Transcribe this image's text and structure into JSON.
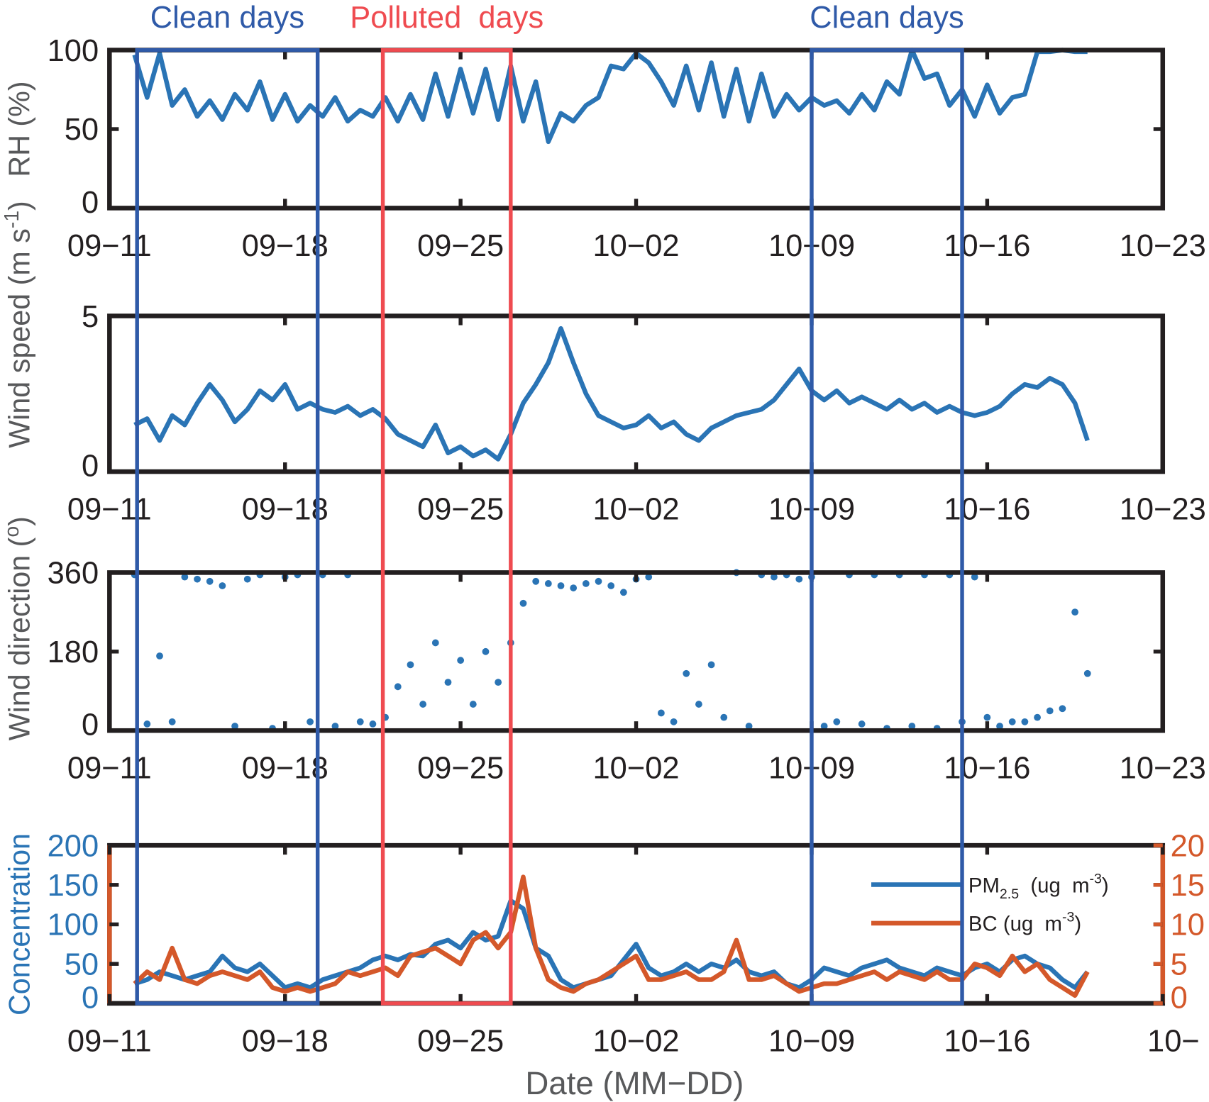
{
  "colors": {
    "blue_series": "#2a74b5",
    "orange_series": "#d4582a",
    "clean_box": "#2f5aa8",
    "polluted_box": "#ef4b50",
    "axis": "#231f20"
  },
  "annotations": [
    {
      "label": "Clean days",
      "color": "#2f5aa8",
      "from_day": 1.1,
      "to_day": 8.3
    },
    {
      "label": "Polluted  days",
      "color": "#ef4b50",
      "from_day": 10.9,
      "to_day": 16.0
    },
    {
      "label": "Clean days",
      "color": "#2f5aa8",
      "from_day": 28.0,
      "to_day": 34.0
    }
  ],
  "xaxis": {
    "label": "Date (MM−DD)",
    "origin_date": "09-11",
    "xlim": [
      0,
      42
    ],
    "tick_days": [
      0,
      7,
      14,
      21,
      28,
      35,
      42
    ],
    "tick_labels": [
      "09−11",
      "09−18",
      "09−25",
      "10−02",
      "10−09",
      "10−16",
      "10−23"
    ],
    "last_label_bottom": "10−"
  },
  "series_time": {
    "start_day": 1.0,
    "step_days": 0.5
  },
  "chart_data": [
    {
      "type": "line",
      "ylabel": "RH (%)",
      "ylim": [
        0,
        100
      ],
      "yticks": [
        0,
        50,
        100
      ],
      "ytick_labels": [
        "0",
        "50",
        "100"
      ],
      "series": [
        {
          "name": "RH",
          "values": [
            97,
            70,
            98,
            65,
            75,
            58,
            68,
            56,
            72,
            62,
            80,
            56,
            72,
            55,
            65,
            58,
            70,
            55,
            62,
            58,
            70,
            55,
            72,
            56,
            85,
            58,
            88,
            60,
            88,
            56,
            90,
            55,
            80,
            42,
            60,
            55,
            65,
            70,
            90,
            88,
            98,
            92,
            80,
            65,
            90,
            62,
            92,
            58,
            88,
            55,
            85,
            58,
            72,
            62,
            70,
            65,
            68,
            60,
            72,
            62,
            80,
            72,
            100,
            82,
            85,
            65,
            75,
            58,
            78,
            60,
            70,
            72,
            99,
            99,
            100,
            99,
            99
          ]
        }
      ]
    },
    {
      "type": "line",
      "ylabel": "Wind speed  (m s",
      "ylabel_sup": "-1",
      "ylabel_end": ")",
      "ylim": [
        0,
        5
      ],
      "yticks": [
        0,
        5
      ],
      "ytick_labels": [
        "0",
        "5"
      ],
      "series": [
        {
          "name": "Wind speed",
          "values": [
            1.5,
            1.7,
            1.0,
            1.8,
            1.5,
            2.2,
            2.8,
            2.3,
            1.6,
            2.0,
            2.6,
            2.3,
            2.8,
            2.0,
            2.2,
            2.0,
            1.9,
            2.1,
            1.8,
            2.0,
            1.7,
            1.2,
            1.0,
            0.8,
            1.5,
            0.6,
            0.8,
            0.5,
            0.7,
            0.4,
            1.2,
            2.2,
            2.8,
            3.5,
            4.6,
            3.5,
            2.5,
            1.8,
            1.6,
            1.4,
            1.5,
            1.8,
            1.4,
            1.6,
            1.2,
            1.0,
            1.4,
            1.6,
            1.8,
            1.9,
            2.0,
            2.3,
            2.8,
            3.3,
            2.6,
            2.3,
            2.6,
            2.2,
            2.4,
            2.2,
            2.0,
            2.3,
            2.0,
            2.2,
            1.9,
            2.1,
            1.9,
            1.8,
            1.9,
            2.1,
            2.5,
            2.8,
            2.7,
            3.0,
            2.8,
            2.2,
            1.0
          ]
        }
      ]
    },
    {
      "type": "scatter",
      "ylabel": "Wind  direction  (",
      "ylabel_sup": "o",
      "ylabel_end": ")",
      "ylim": [
        0,
        360
      ],
      "yticks": [
        0,
        180,
        360
      ],
      "ytick_labels": [
        "0",
        "180",
        "360"
      ],
      "series": [
        {
          "name": "Wind direction",
          "values": [
            355,
            15,
            170,
            20,
            350,
            345,
            340,
            330,
            10,
            345,
            355,
            5,
            350,
            355,
            20,
            355,
            10,
            355,
            20,
            15,
            30,
            100,
            150,
            60,
            200,
            110,
            160,
            60,
            180,
            110,
            200,
            290,
            340,
            335,
            330,
            325,
            335,
            340,
            330,
            315,
            345,
            350,
            40,
            20,
            130,
            60,
            150,
            30,
            360,
            10,
            355,
            350,
            355,
            345,
            350,
            10,
            20,
            355,
            15,
            355,
            5,
            355,
            10,
            355,
            5,
            355,
            20,
            350,
            30,
            10,
            20,
            20,
            30,
            45,
            50,
            270,
            130
          ]
        }
      ]
    },
    {
      "type": "line",
      "ylabel": "Concentration",
      "ylim": [
        0,
        200
      ],
      "y2lim": [
        0,
        20
      ],
      "yticks": [
        0,
        50,
        100,
        150,
        200
      ],
      "ytick_labels": [
        "0",
        "50",
        "100",
        "150",
        "200"
      ],
      "y2ticks": [
        0,
        5,
        10,
        15,
        20
      ],
      "y2tick_labels": [
        "0",
        "5",
        "10",
        "15",
        "20"
      ],
      "legend": {
        "position": "top-right",
        "entries": [
          {
            "main": "PM",
            "sub": "2.5",
            "unit": "  (ug  m",
            "sup": "-3",
            "end": ")"
          },
          {
            "main": "BC",
            "sub": "",
            "unit": " (ug  m",
            "sup": "-3",
            "end": ")"
          }
        ]
      },
      "series": [
        {
          "name": "PM2.5",
          "axis": "left",
          "values": [
            25,
            30,
            40,
            35,
            30,
            35,
            40,
            60,
            45,
            40,
            50,
            35,
            20,
            25,
            20,
            30,
            35,
            40,
            45,
            55,
            60,
            55,
            62,
            60,
            75,
            80,
            70,
            90,
            80,
            85,
            130,
            120,
            70,
            60,
            30,
            20,
            25,
            30,
            35,
            55,
            75,
            45,
            35,
            40,
            50,
            40,
            50,
            45,
            55,
            40,
            35,
            40,
            25,
            20,
            30,
            45,
            40,
            35,
            45,
            50,
            55,
            45,
            40,
            35,
            45,
            40,
            35,
            45,
            50,
            40,
            55,
            60,
            50,
            45,
            30,
            20,
            40
          ]
        },
        {
          "name": "BC",
          "axis": "right",
          "values": [
            2.5,
            4,
            3,
            7,
            3,
            2.5,
            3.5,
            4,
            3.5,
            3,
            4,
            2,
            1.5,
            2,
            1.5,
            2,
            2.5,
            4,
            3.5,
            4,
            4.5,
            3.5,
            6,
            6.5,
            7,
            6,
            5,
            8,
            9,
            7,
            9,
            16,
            7,
            3,
            2,
            1.5,
            2.5,
            3,
            4,
            5,
            6,
            3,
            3,
            3.5,
            4,
            3,
            3,
            4,
            8,
            3,
            3,
            3.5,
            2.5,
            1.5,
            2,
            2.5,
            2.5,
            3,
            3.5,
            4,
            3,
            4,
            3.5,
            3,
            4,
            3,
            3,
            5,
            4.5,
            3.5,
            6,
            4,
            5,
            3,
            2,
            1,
            4
          ]
        }
      ]
    }
  ]
}
